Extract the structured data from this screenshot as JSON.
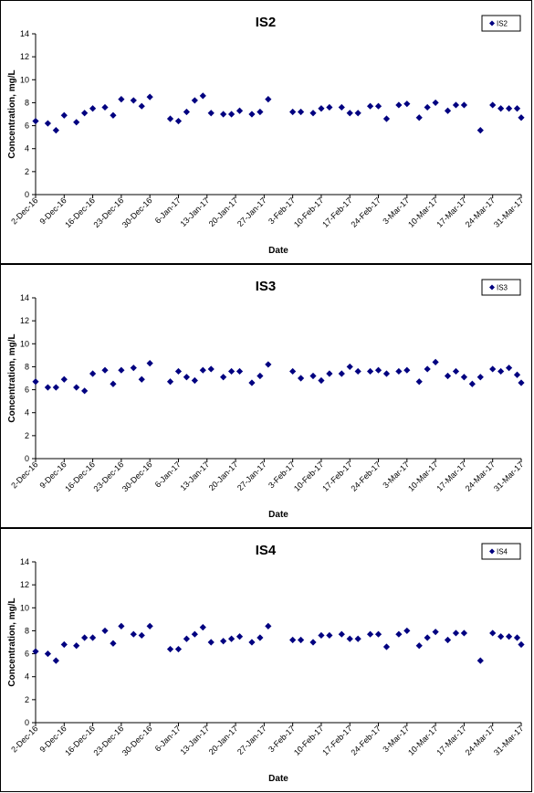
{
  "chart_data": [
    {
      "type": "scatter",
      "title": "IS2",
      "xlabel": "Date",
      "ylabel": "Concentration, mg/L",
      "ylim": [
        0,
        14
      ],
      "yticks": [
        "0",
        "2",
        "4",
        "6",
        "8",
        "10",
        "12",
        "14"
      ],
      "xlim": [
        "2016-12-02",
        "2017-03-31"
      ],
      "xticks": [
        "2-Dec-16",
        "9-Dec-16",
        "16-Dec-16",
        "23-Dec-16",
        "30-Dec-16",
        "6-Jan-17",
        "13-Jan-17",
        "20-Jan-17",
        "27-Jan-17",
        "3-Feb-17",
        "10-Feb-17",
        "17-Feb-17",
        "24-Feb-17",
        "3-Mar-17",
        "10-Mar-17",
        "17-Mar-17",
        "24-Mar-17",
        "31-Mar-17"
      ],
      "grid": false,
      "legend": "top-right",
      "color": "#000080",
      "series": [
        {
          "name": "IS2",
          "x": [
            "2016-12-02",
            "2016-12-05",
            "2016-12-07",
            "2016-12-09",
            "2016-12-12",
            "2016-12-14",
            "2016-12-16",
            "2016-12-19",
            "2016-12-21",
            "2016-12-23",
            "2016-12-26",
            "2016-12-28",
            "2016-12-30",
            "2017-01-04",
            "2017-01-06",
            "2017-01-08",
            "2017-01-10",
            "2017-01-12",
            "2017-01-14",
            "2017-01-17",
            "2017-01-19",
            "2017-01-21",
            "2017-01-24",
            "2017-01-26",
            "2017-01-28",
            "2017-02-03",
            "2017-02-05",
            "2017-02-08",
            "2017-02-10",
            "2017-02-12",
            "2017-02-15",
            "2017-02-17",
            "2017-02-19",
            "2017-02-22",
            "2017-02-24",
            "2017-02-26",
            "2017-03-01",
            "2017-03-03",
            "2017-03-06",
            "2017-03-08",
            "2017-03-10",
            "2017-03-13",
            "2017-03-15",
            "2017-03-17",
            "2017-03-21",
            "2017-03-24",
            "2017-03-26",
            "2017-03-28",
            "2017-03-30",
            "2017-03-31"
          ],
          "y": [
            6.4,
            6.2,
            5.6,
            6.9,
            6.3,
            7.1,
            7.5,
            7.6,
            6.9,
            8.3,
            8.2,
            7.7,
            8.5,
            6.6,
            6.4,
            7.2,
            8.2,
            8.6,
            7.1,
            7.0,
            7.0,
            7.3,
            7.0,
            7.2,
            8.3,
            7.2,
            7.2,
            7.1,
            7.5,
            7.6,
            7.6,
            7.1,
            7.1,
            7.7,
            7.7,
            6.6,
            7.8,
            7.9,
            6.7,
            7.6,
            8.0,
            7.3,
            7.8,
            7.8,
            5.6,
            7.8,
            7.5,
            7.5,
            7.5,
            6.7
          ]
        }
      ]
    },
    {
      "type": "scatter",
      "title": "IS3",
      "xlabel": "Date",
      "ylabel": "Concentration, mg/L",
      "ylim": [
        0,
        14
      ],
      "yticks": [
        "0",
        "2",
        "4",
        "6",
        "8",
        "10",
        "12",
        "14"
      ],
      "xlim": [
        "2016-12-02",
        "2017-03-31"
      ],
      "xticks": [
        "2-Dec-16",
        "9-Dec-16",
        "16-Dec-16",
        "23-Dec-16",
        "30-Dec-16",
        "6-Jan-17",
        "13-Jan-17",
        "20-Jan-17",
        "27-Jan-17",
        "3-Feb-17",
        "10-Feb-17",
        "17-Feb-17",
        "24-Feb-17",
        "3-Mar-17",
        "10-Mar-17",
        "17-Mar-17",
        "24-Mar-17",
        "31-Mar-17"
      ],
      "grid": false,
      "legend": "top-right",
      "color": "#000080",
      "series": [
        {
          "name": "IS3",
          "x": [
            "2016-12-02",
            "2016-12-05",
            "2016-12-07",
            "2016-12-09",
            "2016-12-12",
            "2016-12-14",
            "2016-12-16",
            "2016-12-19",
            "2016-12-21",
            "2016-12-23",
            "2016-12-26",
            "2016-12-28",
            "2016-12-30",
            "2017-01-04",
            "2017-01-06",
            "2017-01-08",
            "2017-01-10",
            "2017-01-12",
            "2017-01-14",
            "2017-01-17",
            "2017-01-19",
            "2017-01-21",
            "2017-01-24",
            "2017-01-26",
            "2017-01-28",
            "2017-02-03",
            "2017-02-05",
            "2017-02-08",
            "2017-02-10",
            "2017-02-12",
            "2017-02-15",
            "2017-02-17",
            "2017-02-19",
            "2017-02-22",
            "2017-02-24",
            "2017-02-26",
            "2017-03-01",
            "2017-03-03",
            "2017-03-06",
            "2017-03-08",
            "2017-03-10",
            "2017-03-13",
            "2017-03-15",
            "2017-03-17",
            "2017-03-19",
            "2017-03-21",
            "2017-03-24",
            "2017-03-26",
            "2017-03-28",
            "2017-03-30",
            "2017-03-31"
          ],
          "y": [
            6.7,
            6.2,
            6.2,
            6.9,
            6.2,
            5.9,
            7.4,
            7.7,
            6.5,
            7.7,
            7.9,
            6.9,
            8.3,
            6.7,
            7.6,
            7.1,
            6.8,
            7.7,
            7.8,
            7.1,
            7.6,
            7.6,
            6.6,
            7.2,
            8.2,
            7.6,
            7.0,
            7.2,
            6.8,
            7.4,
            7.4,
            8.0,
            7.6,
            7.6,
            7.7,
            7.4,
            7.6,
            7.7,
            6.7,
            7.8,
            8.4,
            7.2,
            7.6,
            7.1,
            6.5,
            7.1,
            7.8,
            7.6,
            7.9,
            7.3,
            6.6
          ]
        }
      ]
    },
    {
      "type": "scatter",
      "title": "IS4",
      "xlabel": "Date",
      "ylabel": "Concentration, mg/L",
      "ylim": [
        0,
        14
      ],
      "yticks": [
        "0",
        "2",
        "4",
        "6",
        "8",
        "10",
        "12",
        "14"
      ],
      "xlim": [
        "2016-12-02",
        "2017-03-31"
      ],
      "xticks": [
        "2-Dec-16",
        "9-Dec-16",
        "16-Dec-16",
        "23-Dec-16",
        "30-Dec-16",
        "6-Jan-17",
        "13-Jan-17",
        "20-Jan-17",
        "27-Jan-17",
        "3-Feb-17",
        "10-Feb-17",
        "17-Feb-17",
        "24-Feb-17",
        "3-Mar-17",
        "10-Mar-17",
        "17-Mar-17",
        "24-Mar-17",
        "31-Mar-17"
      ],
      "grid": false,
      "legend": "top-right",
      "color": "#000080",
      "series": [
        {
          "name": "IS4",
          "x": [
            "2016-12-02",
            "2016-12-05",
            "2016-12-07",
            "2016-12-09",
            "2016-12-12",
            "2016-12-14",
            "2016-12-16",
            "2016-12-19",
            "2016-12-21",
            "2016-12-23",
            "2016-12-26",
            "2016-12-28",
            "2016-12-30",
            "2017-01-04",
            "2017-01-06",
            "2017-01-08",
            "2017-01-10",
            "2017-01-12",
            "2017-01-14",
            "2017-01-17",
            "2017-01-19",
            "2017-01-21",
            "2017-01-24",
            "2017-01-26",
            "2017-01-28",
            "2017-02-03",
            "2017-02-05",
            "2017-02-08",
            "2017-02-10",
            "2017-02-12",
            "2017-02-15",
            "2017-02-17",
            "2017-02-19",
            "2017-02-22",
            "2017-02-24",
            "2017-02-26",
            "2017-03-01",
            "2017-03-03",
            "2017-03-06",
            "2017-03-08",
            "2017-03-10",
            "2017-03-13",
            "2017-03-15",
            "2017-03-17",
            "2017-03-21",
            "2017-03-24",
            "2017-03-26",
            "2017-03-28",
            "2017-03-30",
            "2017-03-31"
          ],
          "y": [
            6.2,
            6.0,
            5.4,
            6.8,
            6.7,
            7.4,
            7.4,
            8.0,
            6.9,
            8.4,
            7.7,
            7.6,
            8.4,
            6.4,
            6.4,
            7.3,
            7.7,
            8.3,
            7.0,
            7.1,
            7.3,
            7.5,
            7.0,
            7.4,
            8.4,
            7.2,
            7.2,
            7.0,
            7.6,
            7.6,
            7.7,
            7.3,
            7.3,
            7.7,
            7.7,
            6.6,
            7.7,
            8.0,
            6.7,
            7.4,
            7.9,
            7.2,
            7.8,
            7.8,
            5.4,
            7.8,
            7.5,
            7.5,
            7.4,
            6.8
          ]
        }
      ]
    }
  ]
}
